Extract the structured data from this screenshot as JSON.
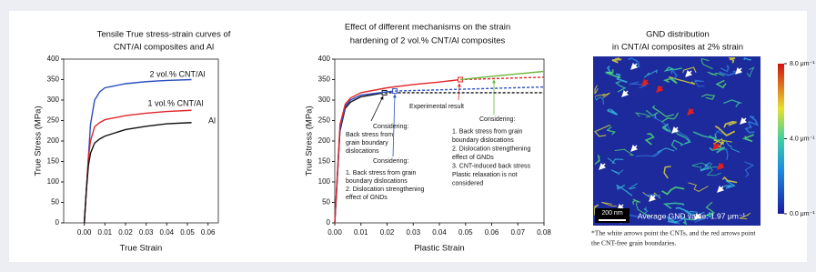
{
  "chart_data": [
    {
      "type": "line",
      "title": [
        "Tensile True stress-strain curves of",
        "CNT/Al composites and Al"
      ],
      "xlabel": "True Strain",
      "ylabel": "True Stress (MPa)",
      "xlim": [
        -0.01,
        0.065
      ],
      "ylim": [
        0,
        400
      ],
      "xticks": [
        {
          "value": 0,
          "label": "0.00"
        },
        {
          "value": 0.01,
          "label": "0.01"
        },
        {
          "value": 0.02,
          "label": "0.02"
        },
        {
          "value": 0.03,
          "label": "0.03"
        },
        {
          "value": 0.04,
          "label": "0.04"
        },
        {
          "value": 0.05,
          "label": "0.05"
        },
        {
          "value": 0.06,
          "label": "0.06"
        }
      ],
      "yticks": [
        0,
        50,
        100,
        150,
        200,
        250,
        300,
        350,
        400
      ],
      "x": [
        0,
        0.001,
        0.002,
        0.003,
        0.005,
        0.0075,
        0.01,
        0.02,
        0.03,
        0.04,
        0.052
      ],
      "series": [
        {
          "name": "2 vol.% CNT/Al",
          "color": "#2a4fc0",
          "values": [
            0,
            80,
            160,
            240,
            300,
            320,
            330,
            340,
            345,
            348,
            350
          ]
        },
        {
          "name": "1 vol.% CNT/Al",
          "color": "#e0262a",
          "values": [
            0,
            80,
            160,
            200,
            235,
            245,
            252,
            262,
            268,
            272,
            275
          ]
        },
        {
          "name": "Al",
          "color": "#111111",
          "values": [
            0,
            80,
            140,
            170,
            195,
            205,
            212,
            228,
            236,
            242,
            245
          ]
        }
      ]
    },
    {
      "type": "line",
      "title": [
        "Effect of different mechanisms on the strain",
        "hardening of 2 vol.% CNT/Al composites"
      ],
      "xlabel": "Plastic Strain",
      "ylabel": "True Stress (MPa)",
      "xlim": [
        0,
        0.08
      ],
      "ylim": [
        0,
        400
      ],
      "xticks": [
        {
          "value": 0,
          "label": "0.00"
        },
        {
          "value": 0.01,
          "label": "0.01"
        },
        {
          "value": 0.02,
          "label": "0.02"
        },
        {
          "value": 0.03,
          "label": "0.03"
        },
        {
          "value": 0.04,
          "label": "0.04"
        },
        {
          "value": 0.05,
          "label": "0.05"
        },
        {
          "value": 0.06,
          "label": "0.06"
        },
        {
          "value": 0.07,
          "label": "0.07"
        },
        {
          "value": 0.08,
          "label": "0.08"
        }
      ],
      "yticks": [
        0,
        50,
        100,
        150,
        200,
        250,
        300,
        350,
        400
      ],
      "series": [
        {
          "color": "#111111",
          "x": [
            0,
            0.002,
            0.004,
            0.006,
            0.01,
            0.019
          ],
          "values": [
            0,
            225,
            280,
            295,
            308,
            318
          ],
          "marker": true
        },
        {
          "color": "#111111",
          "x": [
            0.019,
            0.08
          ],
          "values": [
            318,
            318
          ],
          "dashed": true
        },
        {
          "color": "#2a4fc0",
          "x": [
            0,
            0.002,
            0.004,
            0.006,
            0.01,
            0.02,
            0.023
          ],
          "values": [
            0,
            230,
            285,
            300,
            312,
            320,
            322
          ],
          "marker": true
        },
        {
          "color": "#2a4fc0",
          "x": [
            0.023,
            0.08
          ],
          "values": [
            322,
            332
          ],
          "dashed": true
        },
        {
          "color": "#e0262a",
          "x": [
            0,
            0.002,
            0.004,
            0.006,
            0.01,
            0.02,
            0.03,
            0.04,
            0.048
          ],
          "values": [
            0,
            240,
            290,
            305,
            318,
            330,
            338,
            344,
            350
          ],
          "marker": true
        },
        {
          "color": "#e0262a",
          "x": [
            0.048,
            0.08
          ],
          "values": [
            350,
            356
          ],
          "dashed": true
        },
        {
          "color": "#6ab83a",
          "x": [
            0.048,
            0.06,
            0.07,
            0.08
          ],
          "values": [
            350,
            358,
            364,
            370
          ]
        }
      ],
      "annotations": [
        {
          "color": "#e0262a",
          "lines": [
            "Experimental result"
          ]
        },
        {
          "color": "#111111",
          "lines": [
            "Considering:",
            "Back stress from",
            "grain boundary",
            "dislocations"
          ]
        },
        {
          "color": "#2a4fc0",
          "lines": [
            "Considering:",
            "1. Back stress from grain",
            "boundary dislocations",
            "2. Dislocation strengthening",
            "effect of GNDs"
          ]
        },
        {
          "color": "#6ab83a",
          "lines": [
            "Considering:",
            "1. Back stress from grain",
            "boundary dislocations",
            "2. Dislocation strengthening",
            "effect of GNDs",
            "3. CNT-induced back stress",
            "Plastic relaxation is not",
            "considered"
          ]
        }
      ]
    }
  ],
  "image_panel": {
    "title": [
      "GND distribution",
      "in CNT/Al composites at 2% strain"
    ],
    "scale_bar": "200 nm",
    "average": "Average GND value: 1.97 μm⁻¹",
    "colorbar_lim": [
      0,
      8
    ],
    "colorbar_ticks": [
      {
        "value": 8,
        "label": "8.0 μm⁻¹"
      },
      {
        "value": 4,
        "label": "4.0 μm⁻¹"
      },
      {
        "value": 0,
        "label": "0.0 μm⁻¹"
      }
    ],
    "caption": [
      "*The white arrows point the CNTs, and the red arrows point",
      "the CNT-free grain boundaries."
    ]
  }
}
